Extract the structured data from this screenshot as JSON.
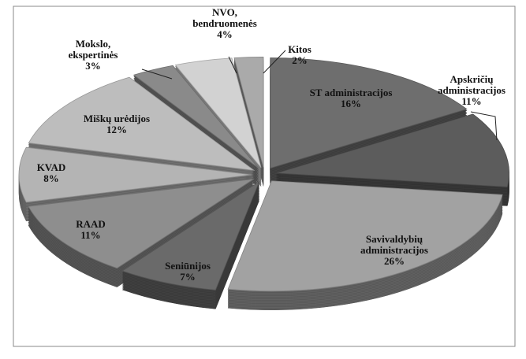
{
  "chart_data": {
    "type": "pie",
    "categories": [
      "ST administracijos",
      "Apskričių administracijos",
      "Savivaldybių administracijos",
      "Seniūnijos",
      "RAAD",
      "KVAD",
      "Miškų urėdijos",
      "Mokslo, ekspertinės",
      "NVO, bendruomenės",
      "Kitos"
    ],
    "values": [
      16,
      11,
      26,
      7,
      11,
      8,
      12,
      3,
      4,
      2
    ],
    "value_labels": [
      "16%",
      "11%",
      "26%",
      "7%",
      "11%",
      "8%",
      "12%",
      "3%",
      "4%",
      "2%"
    ],
    "colors": [
      "#6e6e6e",
      "#5c5c5c",
      "#a2a2a2",
      "#6a6a6a",
      "#8e8e8e",
      "#b4b4b4",
      "#bdbdbd",
      "#8a8a8a",
      "#d2d2d2",
      "#aaaaaa"
    ]
  }
}
